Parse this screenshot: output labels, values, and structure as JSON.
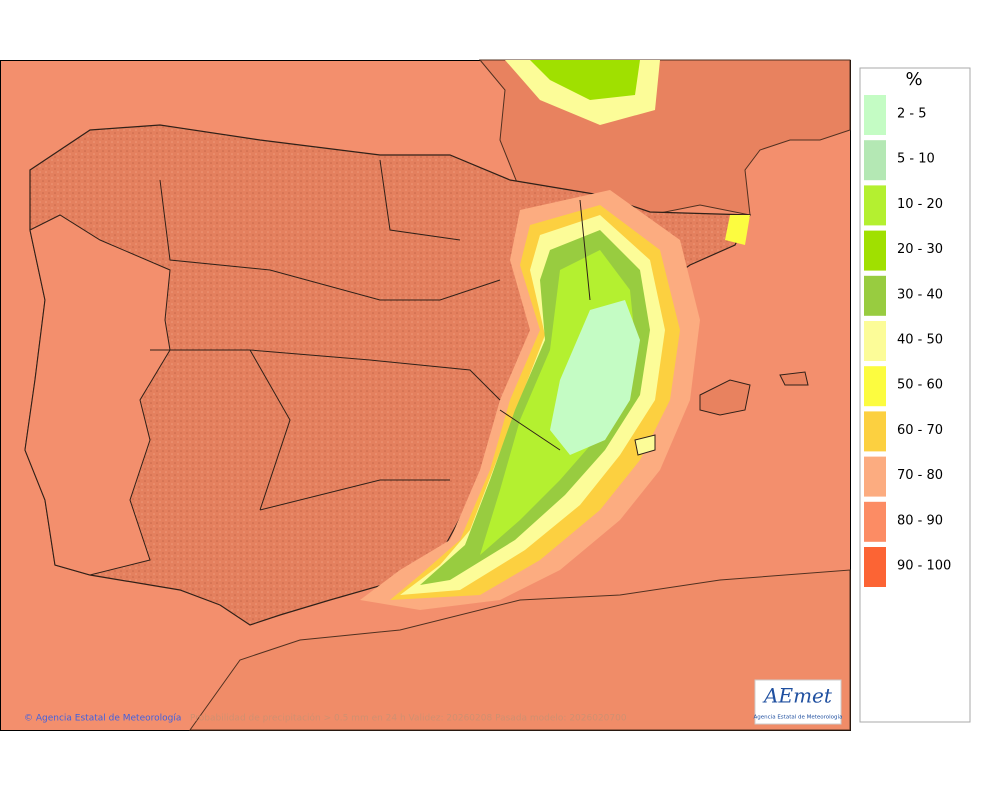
{
  "legend": {
    "title": "%",
    "items": [
      {
        "label": "2 - 5",
        "color": "#c4fcc4"
      },
      {
        "label": "5 - 10",
        "color": "#b4e8b4"
      },
      {
        "label": "10 - 20",
        "color": "#b4f030"
      },
      {
        "label": "20 - 30",
        "color": "#a0e000"
      },
      {
        "label": "30 - 40",
        "color": "#98cc40"
      },
      {
        "label": "40 - 50",
        "color": "#fcfc98"
      },
      {
        "label": "50 - 60",
        "color": "#fcfc40"
      },
      {
        "label": "60 - 70",
        "color": "#fcd040"
      },
      {
        "label": "70 - 80",
        "color": "#fcac80"
      },
      {
        "label": "80 - 90",
        "color": "#fc8c64"
      },
      {
        "label": "90 - 100",
        "color": "#fc6434"
      }
    ]
  },
  "footer": {
    "credit": "© Agencia Estatal de Meteorología",
    "caption": "Probabilidad de precipitación > 0.5 mm en 24 h Validez: 20260208 Pasada modelo: 2026020700"
  },
  "logo": {
    "name": "AEmet",
    "subtitle": "Agencia Estatal de Meteorología"
  }
}
